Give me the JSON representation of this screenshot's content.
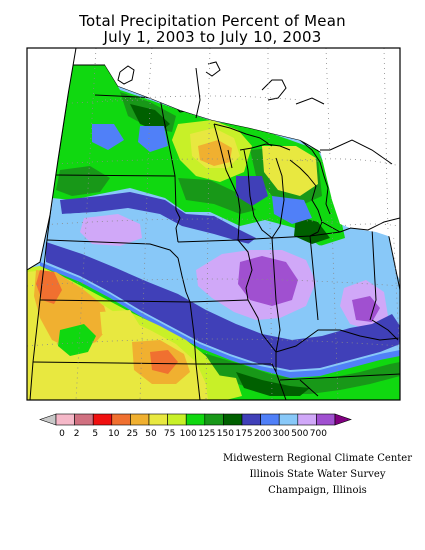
{
  "title": {
    "line1": "Total Precipitation Percent of Mean",
    "line2": "July 1, 2003 to July 10, 2003"
  },
  "legend": {
    "labels": [
      "0",
      "2",
      "5",
      "10",
      "25",
      "50",
      "75",
      "100",
      "125",
      "150",
      "175",
      "200",
      "300",
      "500",
      "700"
    ],
    "colors": [
      "#c8c8c8",
      "#f5b8c8",
      "#d07080",
      "#f01010",
      "#f07030",
      "#f0b030",
      "#e8e840",
      "#c8f028",
      "#10d810",
      "#189818",
      "#006000",
      "#4040b8",
      "#5080f8",
      "#88c8f8",
      "#d0a8f8",
      "#a050d0",
      "#800080"
    ]
  },
  "credits": {
    "line1": "Midwestern Regional Climate Center",
    "line2": "Illinois State Water Survey",
    "line3": "Champaign, Illinois"
  }
}
